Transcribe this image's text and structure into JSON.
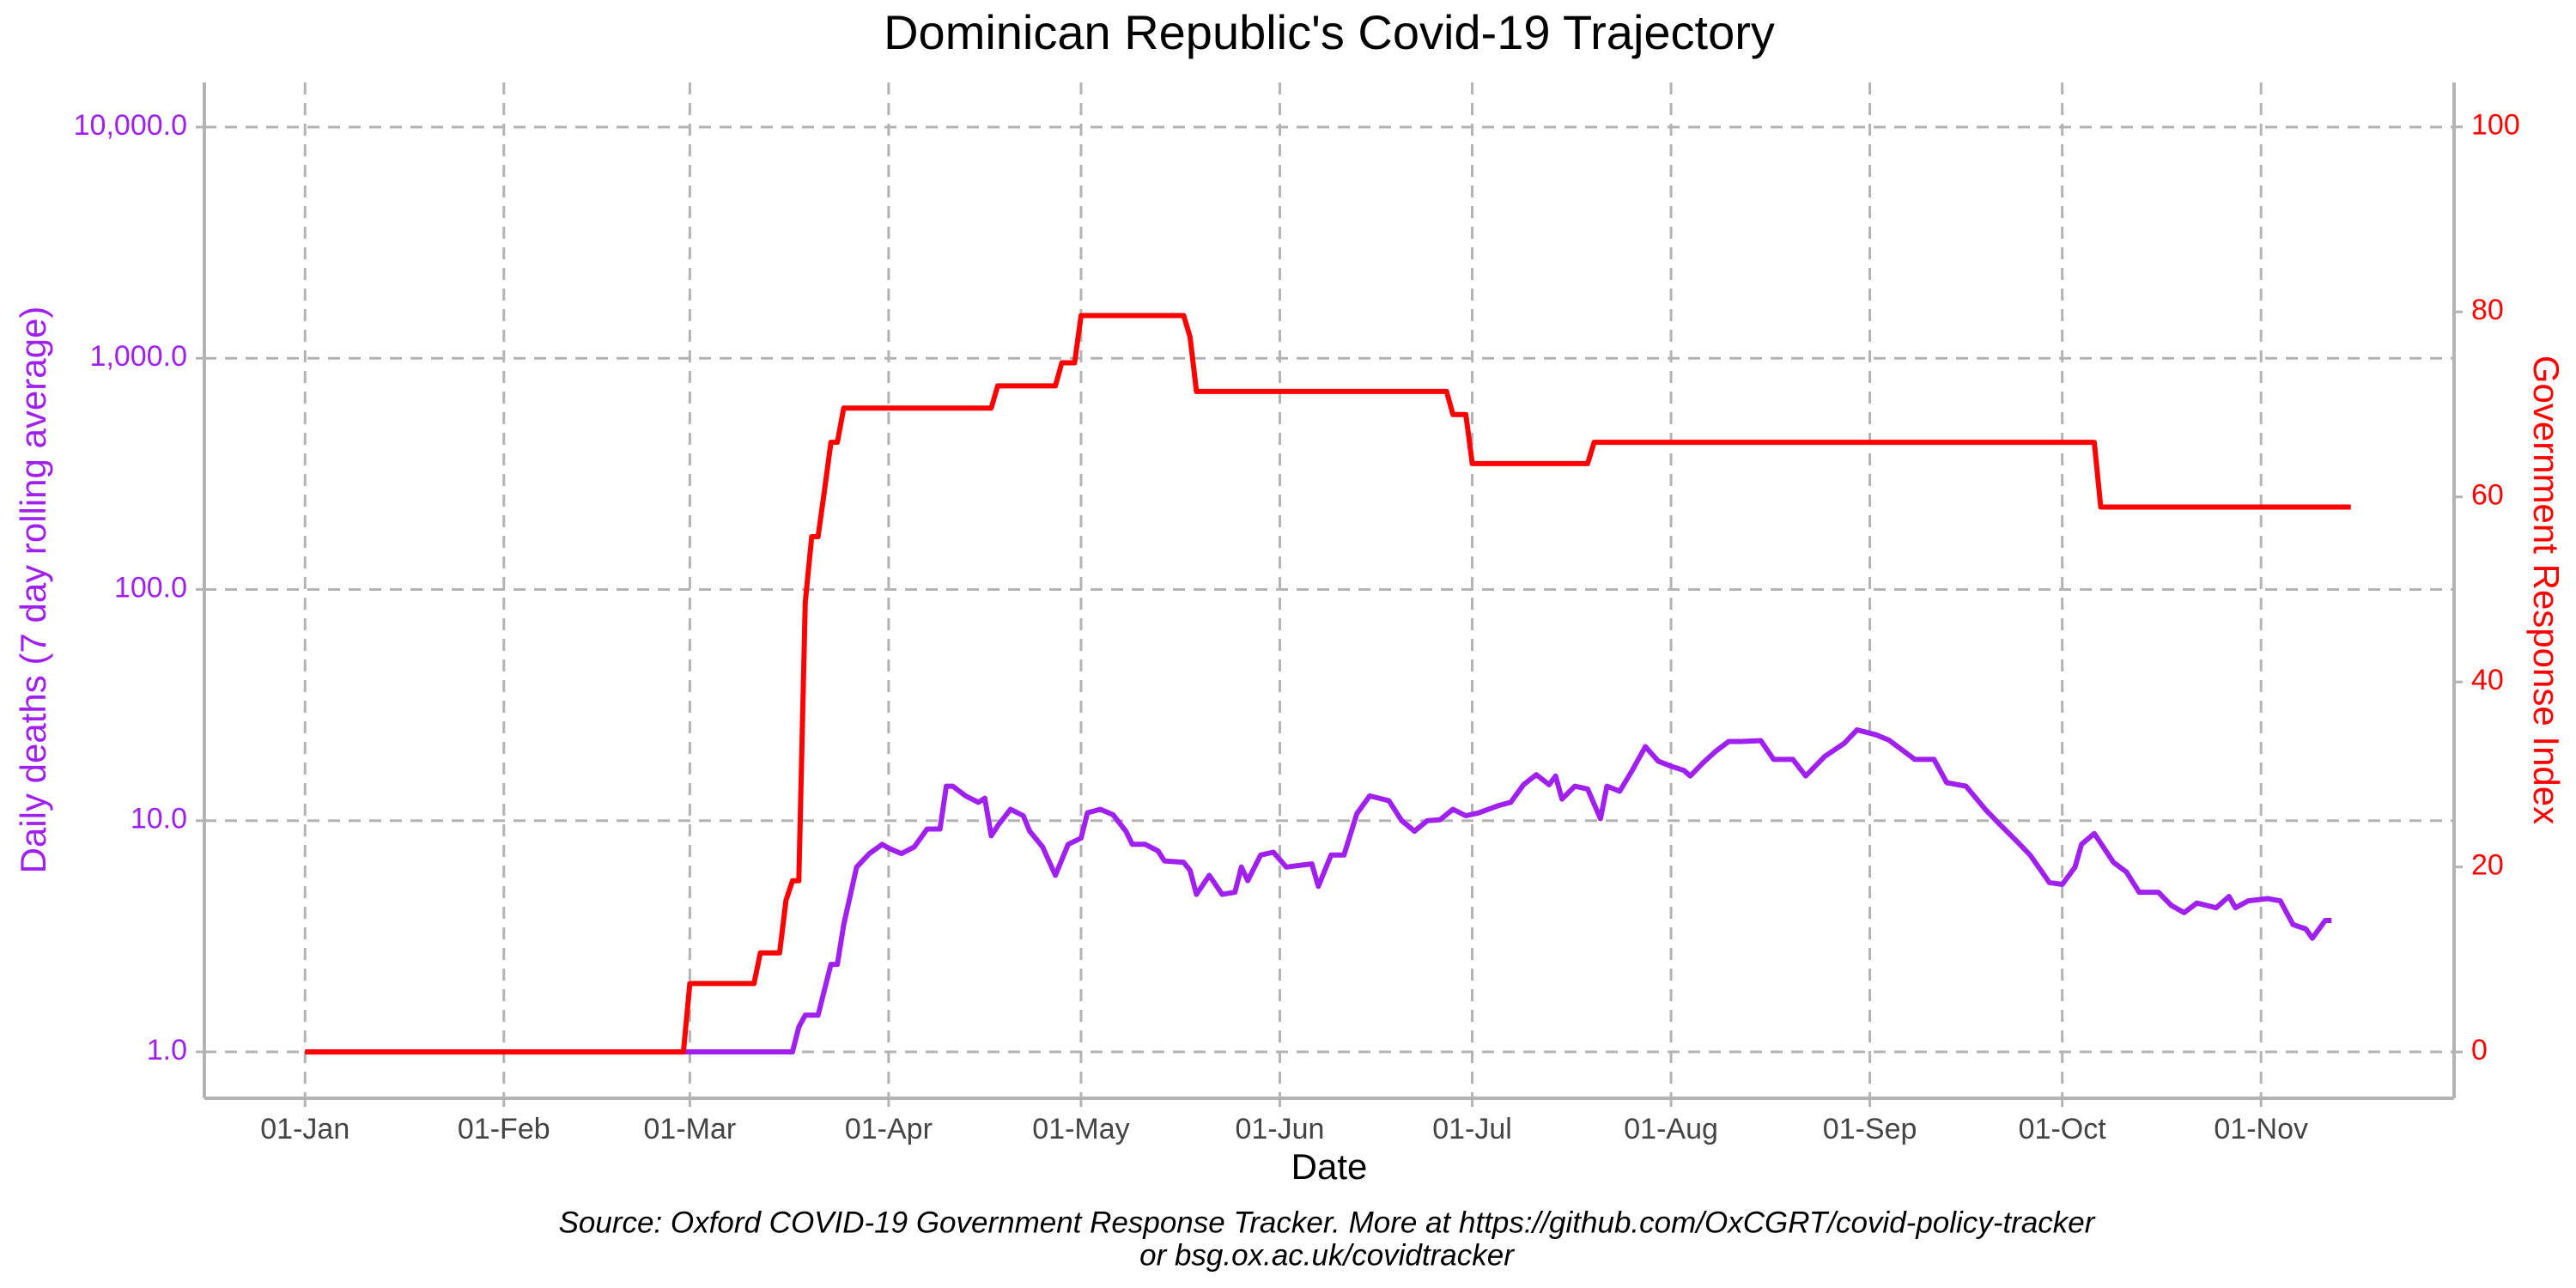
{
  "chart_data": {
    "type": "line",
    "title": "Dominican Republic's Covid-19 Trajectory",
    "xlabel": "Date",
    "ylabel": "Daily deaths (7 day rolling average)",
    "y2label": "Government Response Index",
    "source": [
      "Source: Oxford COVID-19 Government Response Tracker. More at https://github.com/OxCGRT/covid-policy-tracker",
      "or bsg.ox.ac.uk/covidtracker"
    ],
    "ylog": true,
    "grid": true,
    "xlim": [
      -15.7,
      335.1
    ],
    "xticks": [
      {
        "value": 0,
        "label": "01-Jan"
      },
      {
        "value": 31,
        "label": "01-Feb"
      },
      {
        "value": 60,
        "label": "01-Mar"
      },
      {
        "value": 91,
        "label": "01-Apr"
      },
      {
        "value": 121,
        "label": "01-May"
      },
      {
        "value": 152,
        "label": "01-Jun"
      },
      {
        "value": 182,
        "label": "01-Jul"
      },
      {
        "value": 213,
        "label": "01-Aug"
      },
      {
        "value": 244,
        "label": "01-Sep"
      },
      {
        "value": 274,
        "label": "01-Oct"
      },
      {
        "value": 305,
        "label": "01-Nov"
      }
    ],
    "ylim": [
      0.63,
      15600
    ],
    "yticks": [
      {
        "value": 1,
        "label": "1.0"
      },
      {
        "value": 10,
        "label": "10.0"
      },
      {
        "value": 100,
        "label": "100.0"
      },
      {
        "value": 1000,
        "label": "1,000.0"
      },
      {
        "value": 10000,
        "label": "10,000.0"
      }
    ],
    "y2lim": [
      -5,
      104.8
    ],
    "y2ticks": [
      0,
      20,
      40,
      60,
      80,
      100
    ],
    "ycolor": "#a020f0",
    "y2color": "#ff0000",
    "series": [
      {
        "color": "#a020f0",
        "axis": "y",
        "x": [
          0,
          76,
          77,
          78,
          80,
          82,
          83,
          84,
          86,
          88,
          90,
          91,
          93,
          95,
          97,
          99,
          100,
          101,
          103,
          105,
          106,
          107,
          108,
          110,
          112,
          113,
          115,
          117,
          119,
          121,
          122,
          124,
          126,
          128,
          129,
          131,
          133,
          134,
          137,
          138,
          139,
          141,
          143,
          145,
          146,
          147,
          149,
          151,
          153,
          155,
          157,
          158,
          160,
          162,
          164,
          166,
          169,
          171,
          173,
          175,
          177,
          179,
          181,
          183,
          186,
          188,
          190,
          192,
          194,
          195,
          196,
          198,
          200,
          202,
          203,
          205,
          207,
          209,
          211,
          213,
          215,
          216,
          218,
          220,
          222,
          224,
          227,
          229,
          232,
          234,
          237,
          240,
          242,
          245,
          247,
          251,
          254,
          256,
          259,
          262,
          264,
          267,
          269,
          272,
          274,
          276,
          277,
          279,
          282,
          284,
          286,
          289,
          291,
          293,
          295,
          298,
          300,
          301,
          303,
          306,
          308,
          310,
          312,
          313,
          315,
          316
        ],
        "values": [
          1.0,
          1.0,
          1.28,
          1.44,
          1.44,
          2.39,
          2.39,
          3.55,
          6.3,
          7.2,
          7.9,
          7.6,
          7.2,
          7.7,
          9.2,
          9.2,
          14.1,
          14.1,
          12.8,
          12.0,
          12.5,
          8.6,
          9.5,
          11.2,
          10.5,
          9.0,
          7.7,
          5.8,
          7.9,
          8.4,
          10.8,
          11.2,
          10.6,
          9.0,
          7.9,
          7.9,
          7.4,
          6.7,
          6.6,
          6.1,
          4.8,
          5.8,
          4.8,
          4.9,
          6.3,
          5.5,
          7.1,
          7.3,
          6.3,
          6.4,
          6.5,
          5.2,
          7.1,
          7.1,
          10.7,
          12.8,
          12.2,
          10.0,
          9.0,
          10.0,
          10.1,
          11.2,
          10.5,
          10.8,
          11.6,
          12.0,
          14.3,
          15.8,
          14.3,
          15.6,
          12.4,
          14.1,
          13.7,
          10.2,
          14.1,
          13.4,
          16.6,
          20.9,
          18.1,
          17.2,
          16.5,
          15.6,
          17.8,
          20.0,
          22.0,
          22.0,
          22.2,
          18.4,
          18.4,
          15.6,
          19.0,
          21.6,
          24.7,
          23.5,
          22.3,
          18.4,
          18.4,
          14.6,
          14.1,
          11.2,
          9.8,
          8.1,
          7.1,
          5.4,
          5.3,
          6.3,
          7.9,
          8.8,
          6.6,
          6.0,
          4.9,
          4.9,
          4.3,
          4.0,
          4.4,
          4.2,
          4.7,
          4.2,
          4.5,
          4.6,
          4.5,
          3.55,
          3.4,
          3.1,
          3.7,
          3.7
        ]
      },
      {
        "color": "#ff0000",
        "axis": "y2",
        "x": [
          0,
          59,
          60,
          70,
          71,
          74,
          75,
          76,
          77,
          78,
          79,
          80,
          81,
          82,
          83,
          84,
          107,
          108,
          117,
          118,
          120,
          121,
          137,
          138,
          139,
          178,
          179,
          181,
          182,
          200,
          201,
          279,
          280,
          319
        ],
        "values": [
          0,
          0,
          7.4,
          7.4,
          10.7,
          10.7,
          16.4,
          18.5,
          18.5,
          48.6,
          55.7,
          55.7,
          60.7,
          65.9,
          65.9,
          69.6,
          69.6,
          72,
          72,
          74.5,
          74.5,
          79.6,
          79.6,
          77.3,
          71.4,
          71.4,
          68.9,
          68.9,
          63.6,
          63.6,
          65.9,
          65.9,
          58.9,
          58.9
        ]
      }
    ]
  }
}
